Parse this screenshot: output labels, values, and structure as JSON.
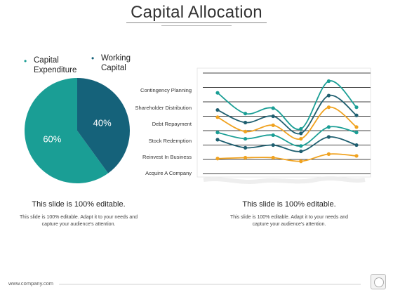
{
  "title": "Capital Allocation",
  "colors": {
    "teal": "#1a9e95",
    "dark_teal": "#15627a",
    "orange": "#f0a21f",
    "line_dark": "#1f5f70"
  },
  "chart_data": [
    {
      "type": "pie",
      "legend_position": "top",
      "series": [
        {
          "name": "Capital Expenditure",
          "value": 60,
          "label": "60%",
          "color": "#1a9e95"
        },
        {
          "name": "Working Capital",
          "value": 40,
          "label": "40%",
          "color": "#15627a"
        }
      ]
    },
    {
      "type": "line",
      "smooth": true,
      "categories": [
        "Contingency Planning",
        "Shareholder Distribution",
        "Debt Repayment",
        "Stock Redemption",
        "Reinvest In Business",
        "Acquire A Company"
      ],
      "x_ticks": 6,
      "grid": true,
      "series": [
        {
          "color": "#1a9e95",
          "values": [
            4.9,
            3.75,
            4.05,
            2.9,
            5.55,
            4.1
          ]
        },
        {
          "color": "#1f5f70",
          "values": [
            3.95,
            3.25,
            3.6,
            2.65,
            4.75,
            3.65
          ]
        },
        {
          "color": "#f0a21f",
          "values": [
            3.55,
            2.75,
            3.1,
            2.35,
            4.1,
            3.0
          ]
        },
        {
          "color": "#1a9e95",
          "values": [
            2.7,
            2.35,
            2.55,
            1.95,
            3.0,
            2.7
          ]
        },
        {
          "color": "#1f5f70",
          "values": [
            2.3,
            1.85,
            2.0,
            1.65,
            2.45,
            2.0
          ]
        },
        {
          "color": "#f0a21f",
          "values": [
            1.25,
            1.3,
            1.3,
            1.1,
            1.5,
            1.4
          ]
        }
      ]
    }
  ],
  "captions": {
    "left_head": "This slide is 100% editable.",
    "left_body": "This slide is 100% editable. Adapt it to your needs and capture your audience's attention.",
    "right_head": "This slide is 100% editable.",
    "right_body": "This slide is 100% editable. Adapt it to your needs and capture your audience's attention."
  },
  "footer": {
    "url": "www.company.com"
  }
}
